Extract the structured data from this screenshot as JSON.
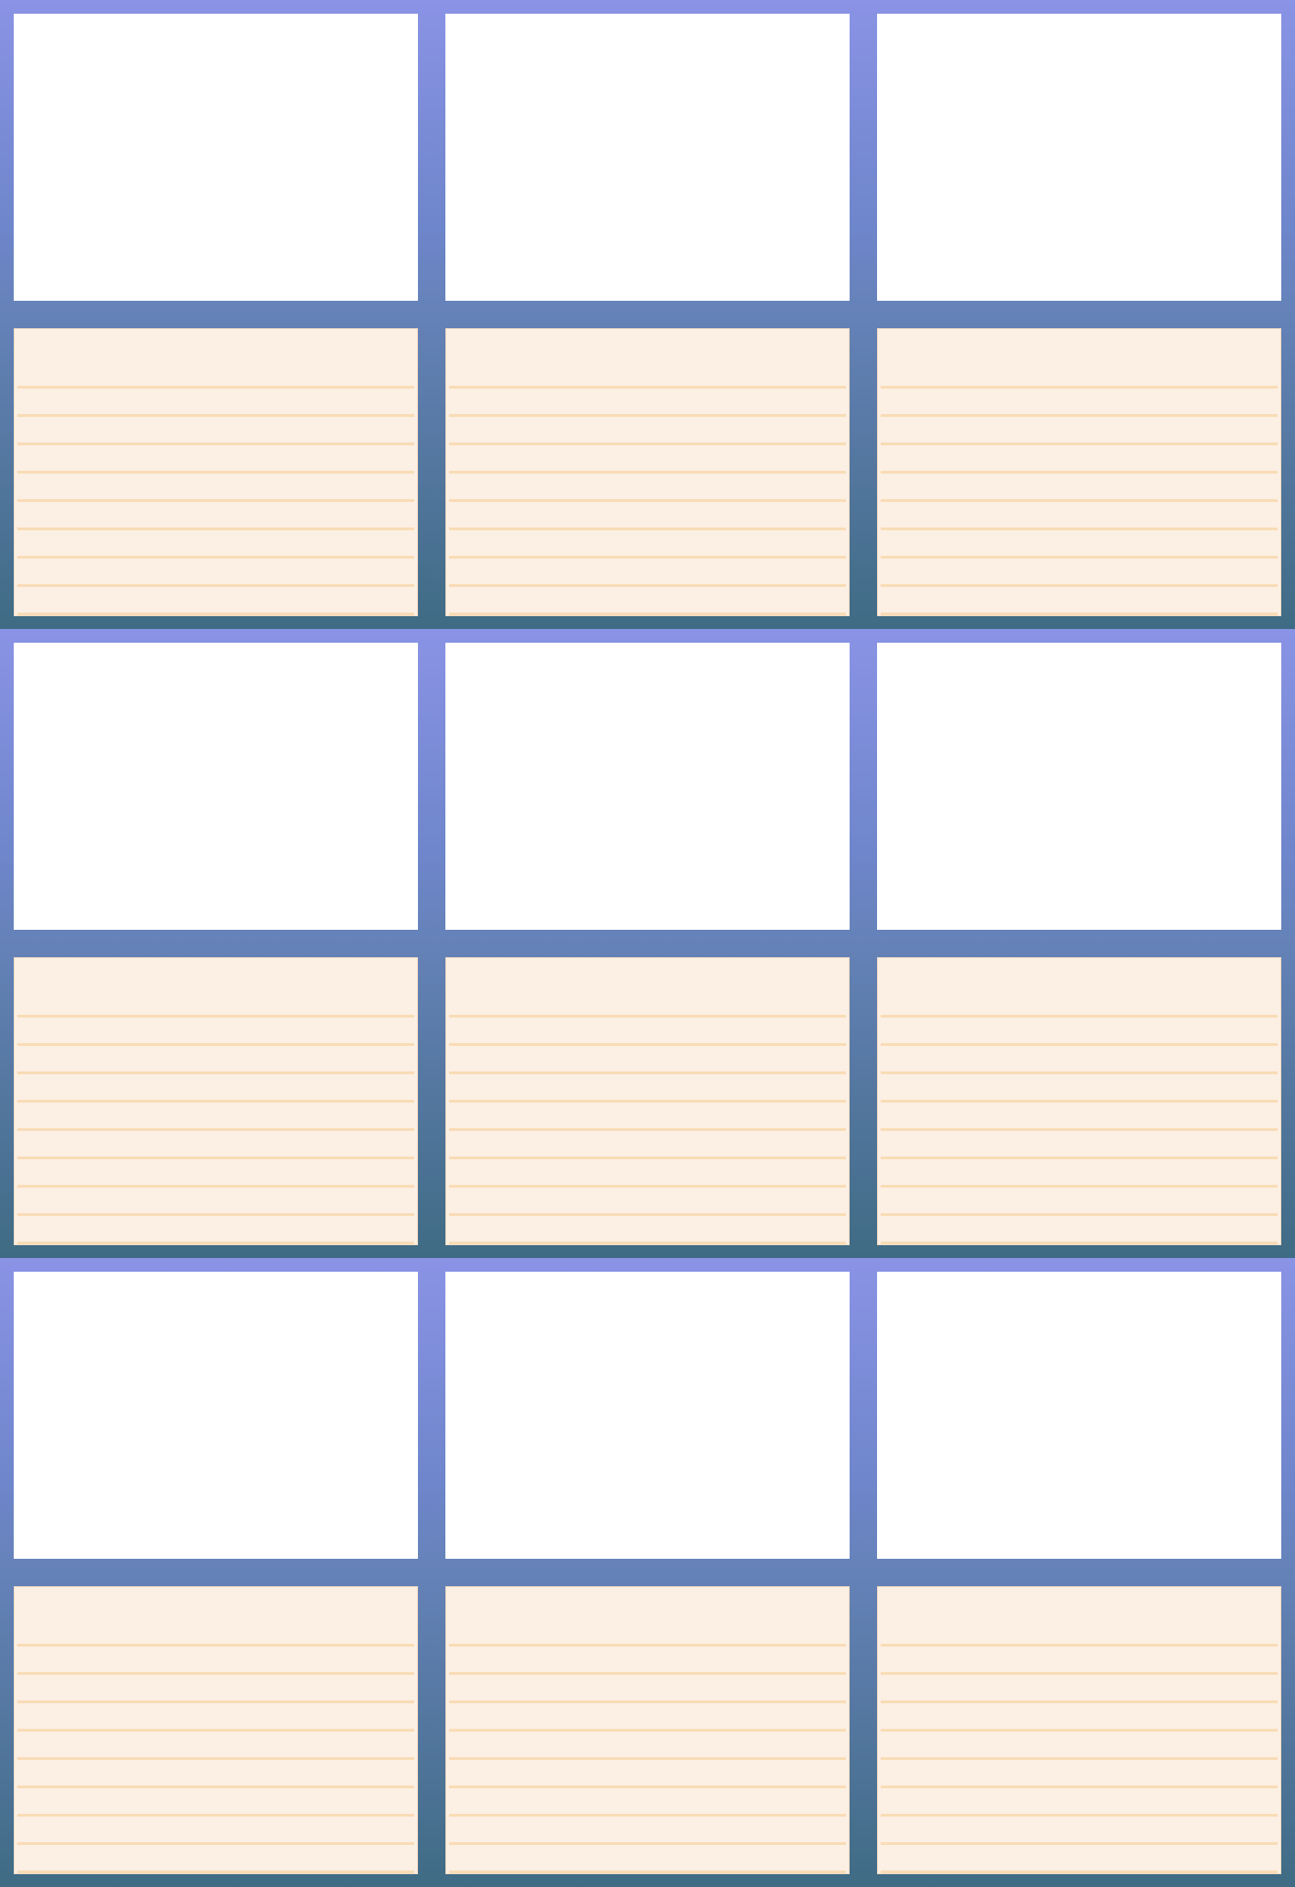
{
  "sheet": {
    "rows": 3,
    "columns": 3,
    "lines_per_card": 9,
    "colors": {
      "gradient_top": "#8a93e5",
      "gradient_bottom": "#3f6b84",
      "photo_box": "#ffffff",
      "card_paper": "#fcefe3",
      "card_rule": "#f9dcb6"
    }
  }
}
